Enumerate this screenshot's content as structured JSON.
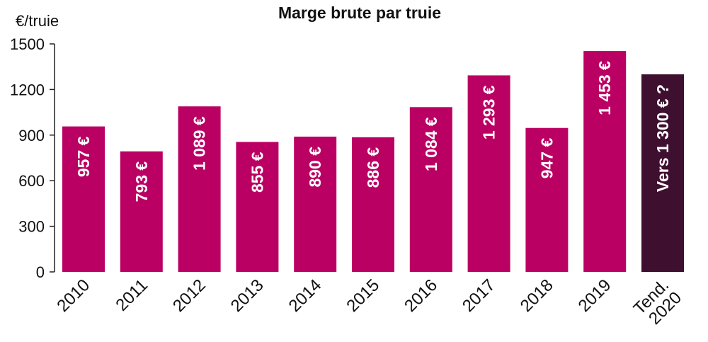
{
  "chart_data": {
    "type": "bar",
    "title": "Marge brute par truie",
    "ylabel": "€/truie",
    "xlabel": "",
    "ylim": [
      0,
      1500
    ],
    "yticks": [
      0,
      300,
      600,
      900,
      1200,
      1500
    ],
    "ytick_labels": [
      "0",
      "300",
      "600",
      "900",
      "1200",
      "1500"
    ],
    "grid": false,
    "categories": [
      "2010",
      "2011",
      "2012",
      "2013",
      "2014",
      "2015",
      "2016",
      "2017",
      "2018",
      "2019",
      "Tend. 2020"
    ],
    "values": [
      957,
      793,
      1089,
      855,
      890,
      886,
      1084,
      1293,
      947,
      1453,
      1300
    ],
    "data_labels": [
      "957 €",
      "793 €",
      "1 089 €",
      "855 €",
      "890 €",
      "886 €",
      "1 084 €",
      "1 293 €",
      "947 €",
      "1 453 €",
      "Vers 1 300 € ?"
    ],
    "colors": {
      "bar": "#bb0064",
      "trend_bar": "#3f0f2f",
      "axis": "#222222"
    }
  }
}
